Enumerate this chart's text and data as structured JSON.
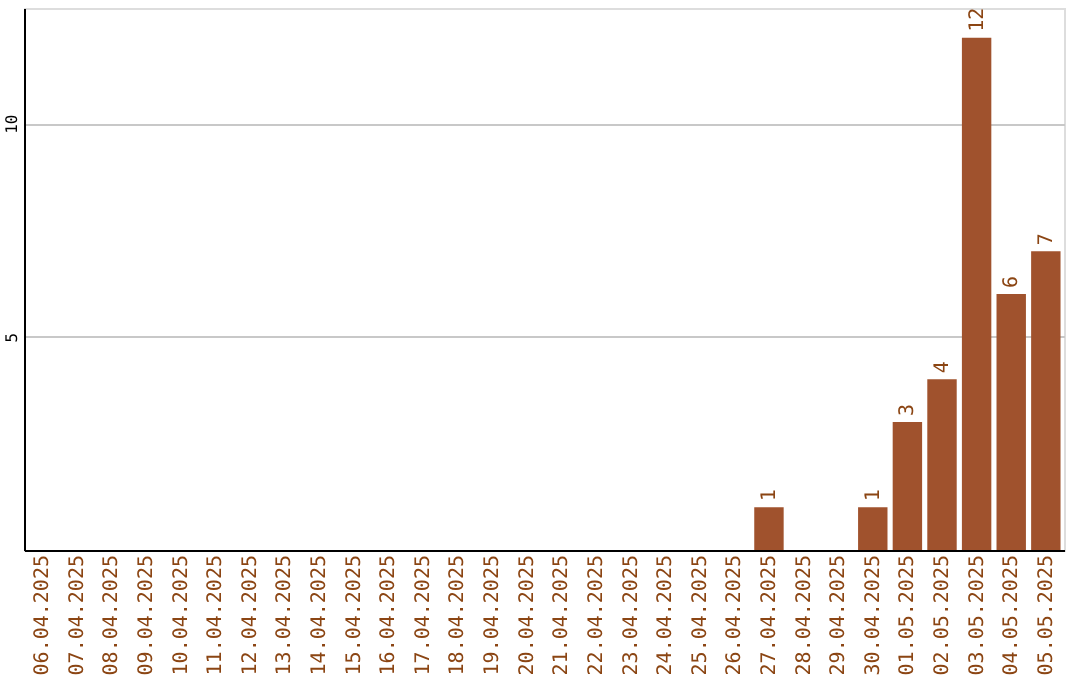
{
  "chart_data": {
    "type": "bar",
    "categories": [
      "06.04.2025",
      "07.04.2025",
      "08.04.2025",
      "09.04.2025",
      "10.04.2025",
      "11.04.2025",
      "12.04.2025",
      "13.04.2025",
      "14.04.2025",
      "15.04.2025",
      "16.04.2025",
      "17.04.2025",
      "18.04.2025",
      "19.04.2025",
      "20.04.2025",
      "21.04.2025",
      "22.04.2025",
      "23.04.2025",
      "24.04.2025",
      "25.04.2025",
      "26.04.2025",
      "27.04.2025",
      "28.04.2025",
      "29.04.2025",
      "30.04.2025",
      "01.05.2025",
      "02.05.2025",
      "03.05.2025",
      "04.05.2025",
      "05.05.2025"
    ],
    "values": [
      0,
      0,
      0,
      0,
      0,
      0,
      0,
      0,
      0,
      0,
      0,
      0,
      0,
      0,
      0,
      0,
      0,
      0,
      0,
      0,
      0,
      1,
      0,
      0,
      1,
      3,
      4,
      12,
      6,
      7
    ],
    "value_labels": [
      null,
      null,
      null,
      null,
      null,
      null,
      null,
      null,
      null,
      null,
      null,
      null,
      null,
      null,
      null,
      null,
      null,
      null,
      null,
      null,
      null,
      "1",
      null,
      null,
      "1",
      "3",
      "4",
      "12",
      "6",
      "7"
    ],
    "color": "#a0522d",
    "ylim": [
      0,
      12.7
    ],
    "yticks": [
      5,
      10
    ],
    "grid": "y"
  }
}
